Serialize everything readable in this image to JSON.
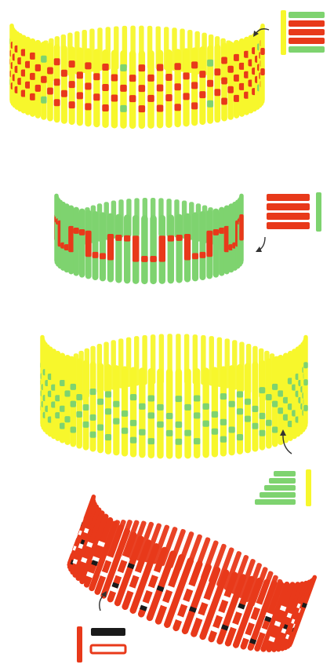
{
  "colors": {
    "background": "#ffffff",
    "yellow": "#f7f72c",
    "yellow_dark": "#e3e326",
    "red": "#e8391a",
    "red_dark": "#c42d12",
    "green": "#7ed36f",
    "green_dark": "#5cb452",
    "black": "#1a1a1a",
    "arrow": "#333333"
  },
  "figures": [
    {
      "name": "bracelet-yellow-red-checker",
      "base": "yellow",
      "accents": [
        "red",
        "green"
      ],
      "pattern": "checker"
    },
    {
      "name": "bracelet-green-red-meander",
      "base": "green",
      "accents": [
        "red"
      ],
      "pattern": "meander"
    },
    {
      "name": "bracelet-yellow-green-scattered",
      "base": "yellow",
      "accents": [
        "green"
      ],
      "pattern": "scattered"
    },
    {
      "name": "bracelet-red-white-black",
      "base": "red",
      "accents": [
        "white",
        "black"
      ],
      "pattern": "dotted"
    }
  ],
  "legends": [
    {
      "name": "legend-1",
      "items": [
        "green",
        "red",
        "red",
        "red",
        "green"
      ],
      "side_bar": "yellow"
    },
    {
      "name": "legend-2",
      "items": [
        "red",
        "red",
        "red",
        "red"
      ],
      "side_bar": "green"
    },
    {
      "name": "legend-3",
      "items": [
        "green",
        "green",
        "green",
        "green",
        "green"
      ],
      "side_bar": "yellow"
    },
    {
      "name": "legend-4",
      "items": [
        "black",
        "red-outline"
      ],
      "side_bar": "red"
    }
  ],
  "icons": [
    "curved-arrow-icon",
    "curved-arrow-icon",
    "curved-arrow-icon",
    "curved-arrow-icon"
  ]
}
